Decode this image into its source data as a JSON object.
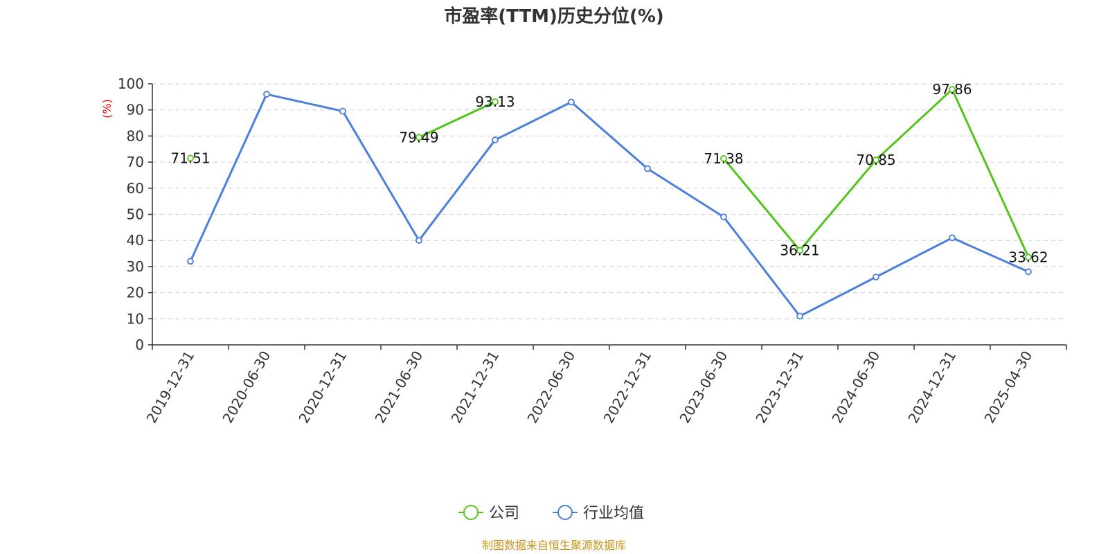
{
  "chart_data": {
    "type": "line",
    "title": "市盈率(TTM)历史分位(%)",
    "ylabel": "(%)",
    "xlabel": "",
    "ylim": [
      0,
      100
    ],
    "yticks": [
      0,
      10,
      20,
      30,
      40,
      50,
      60,
      70,
      80,
      90,
      100
    ],
    "grid": true,
    "legend_position": "bottom-center",
    "categories": [
      "2019-12-31",
      "2020-06-30",
      "2020-12-31",
      "2021-06-30",
      "2021-12-31",
      "2022-06-30",
      "2022-12-31",
      "2023-06-30",
      "2023-12-31",
      "2024-06-30",
      "2024-12-31",
      "2025-04-30"
    ],
    "series": [
      {
        "name": "公司",
        "color": "#52c41a",
        "show_labels": true,
        "values": [
          71.51,
          null,
          null,
          79.49,
          93.13,
          null,
          null,
          71.38,
          36.21,
          70.85,
          97.86,
          33.62
        ]
      },
      {
        "name": "行业均值",
        "color": "#4a7fdc",
        "show_labels": false,
        "values": [
          32,
          96,
          89.5,
          40,
          78.5,
          93,
          67.5,
          49,
          11,
          26,
          41,
          28
        ]
      }
    ]
  },
  "footer": {
    "source": "制图数据来自恒生聚源数据库"
  }
}
